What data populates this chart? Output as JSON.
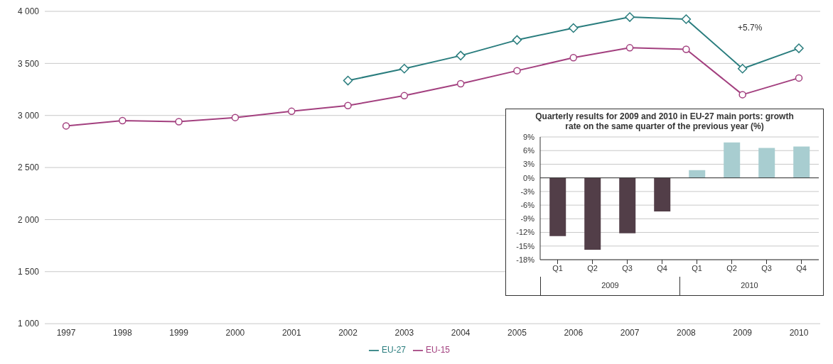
{
  "chart_data": [
    {
      "type": "line",
      "categories": [
        "1997",
        "1998",
        "1999",
        "2000",
        "2001",
        "2002",
        "2003",
        "2004",
        "2005",
        "2006",
        "2007",
        "2008",
        "2009",
        "2010"
      ],
      "series": [
        {
          "name": "EU-27",
          "color": "#2a7d7e",
          "marker": "diamond",
          "values": [
            null,
            null,
            null,
            null,
            null,
            3335,
            3450,
            3575,
            3725,
            3840,
            3945,
            3925,
            3450,
            3645
          ]
        },
        {
          "name": "EU-15",
          "color": "#a3407f",
          "marker": "circle",
          "values": [
            2900,
            2950,
            2940,
            2980,
            3040,
            3095,
            3190,
            3305,
            3430,
            3555,
            3650,
            3635,
            3200,
            3360
          ]
        }
      ],
      "ylim": [
        1000,
        4000
      ],
      "yticks": [
        {
          "value": 1000,
          "label": "1 000"
        },
        {
          "value": 1500,
          "label": "1 500"
        },
        {
          "value": 2000,
          "label": "2 000"
        },
        {
          "value": 2500,
          "label": "2 500"
        },
        {
          "value": 3000,
          "label": "3 000"
        },
        {
          "value": 3500,
          "label": "3 500"
        },
        {
          "value": 4000,
          "label": "4 000"
        }
      ],
      "grid": "y",
      "legend": "bottom",
      "line_style": "solid",
      "annotations": [
        "+5.7%"
      ]
    },
    {
      "type": "bar",
      "title": "Quarterly results for 2009 and 2010 in EU-27 main ports: growth  rate on the same quarter of the previous year (%)",
      "categories": [
        "Q1",
        "Q2",
        "Q3",
        "Q4",
        "Q1",
        "Q2",
        "Q3",
        "Q4"
      ],
      "values": [
        -12.8,
        -15.8,
        -12.2,
        -7.4,
        1.7,
        7.8,
        6.6,
        6.9
      ],
      "colors": [
        "#523e48",
        "#523e48",
        "#523e48",
        "#523e48",
        "#a8cdd0",
        "#a8cdd0",
        "#a8cdd0",
        "#a8cdd0"
      ],
      "ylim": [
        -18,
        9
      ],
      "yticks": [
        {
          "value": -18,
          "label": "-18%"
        },
        {
          "value": -15,
          "label": "-15%"
        },
        {
          "value": -12,
          "label": "-12%"
        },
        {
          "value": -9,
          "label": "-9%"
        },
        {
          "value": -6,
          "label": "-6%"
        },
        {
          "value": -3,
          "label": "-3%"
        },
        {
          "value": 0,
          "label": "0%"
        },
        {
          "value": 3,
          "label": "3%"
        },
        {
          "value": 6,
          "label": "6%"
        },
        {
          "value": 9,
          "label": "9%"
        }
      ],
      "grid": "y",
      "annotations": [
        "2009",
        "2010"
      ]
    }
  ]
}
